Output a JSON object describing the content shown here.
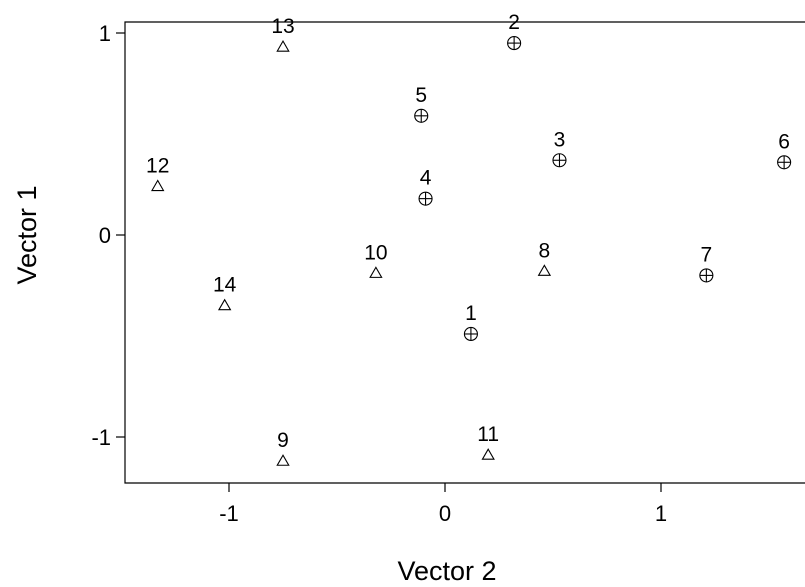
{
  "chart_data": {
    "type": "scatter",
    "xlabel": "Vector 2",
    "ylabel": "Vector 1",
    "xlim": [
      -1.47,
      1.65
    ],
    "ylim": [
      -1.23,
      1.06
    ],
    "xticks": [
      {
        "value": -1,
        "label": "-1"
      },
      {
        "value": 0,
        "label": "0"
      },
      {
        "value": 1,
        "label": "1"
      }
    ],
    "yticks": [
      {
        "value": -1,
        "label": "-1"
      },
      {
        "value": 0,
        "label": "0"
      },
      {
        "value": 1,
        "label": "1"
      }
    ],
    "grid": false,
    "points": [
      {
        "label": "1",
        "x": 0.12,
        "y": -0.49,
        "marker": "circle-plus"
      },
      {
        "label": "2",
        "x": 0.32,
        "y": 0.95,
        "marker": "circle-plus"
      },
      {
        "label": "3",
        "x": 0.53,
        "y": 0.37,
        "marker": "circle-plus"
      },
      {
        "label": "4",
        "x": -0.09,
        "y": 0.18,
        "marker": "circle-plus"
      },
      {
        "label": "5",
        "x": -0.11,
        "y": 0.59,
        "marker": "circle-plus"
      },
      {
        "label": "6",
        "x": 1.57,
        "y": 0.36,
        "marker": "circle-plus"
      },
      {
        "label": "7",
        "x": 1.21,
        "y": -0.2,
        "marker": "circle-plus"
      },
      {
        "label": "8",
        "x": 0.46,
        "y": -0.18,
        "marker": "triangle"
      },
      {
        "label": "9",
        "x": -0.75,
        "y": -1.12,
        "marker": "triangle"
      },
      {
        "label": "10",
        "x": -0.32,
        "y": -0.19,
        "marker": "triangle"
      },
      {
        "label": "11",
        "x": 0.2,
        "y": -1.09,
        "marker": "triangle"
      },
      {
        "label": "12",
        "x": -1.33,
        "y": 0.24,
        "marker": "triangle"
      },
      {
        "label": "13",
        "x": -0.75,
        "y": 0.93,
        "marker": "triangle"
      },
      {
        "label": "14",
        "x": -1.02,
        "y": -0.35,
        "marker": "triangle"
      }
    ]
  }
}
